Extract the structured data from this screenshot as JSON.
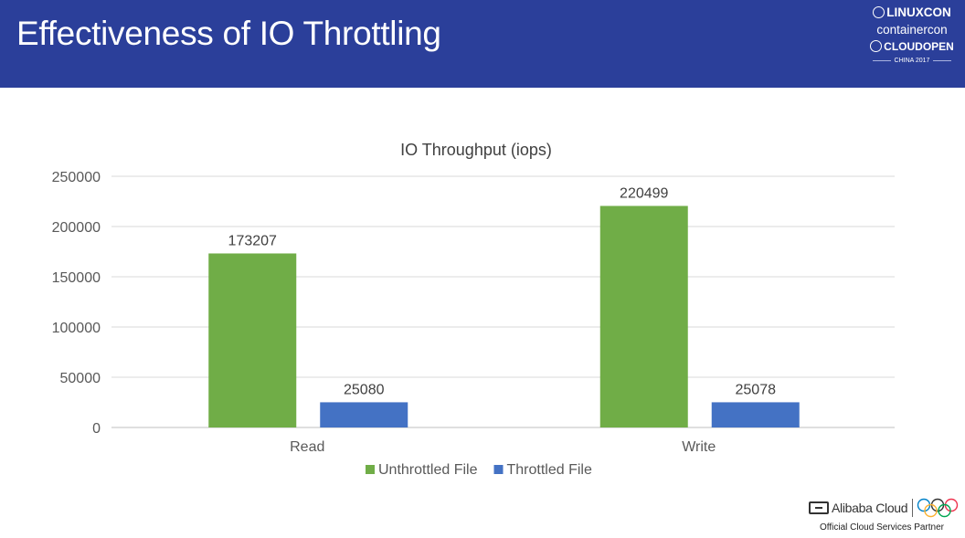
{
  "slide": {
    "title": "Effectiveness of IO Throttling"
  },
  "conference": {
    "line1": "LINUXCON",
    "line2": "containercon",
    "line3": "CLOUDOPEN",
    "line4": "CHINA 2017"
  },
  "footer": {
    "brand": "Alibaba Cloud",
    "partner": "Official Cloud Services Partner"
  },
  "chart_data": {
    "type": "bar",
    "title": "IO Throughput (iops)",
    "categories": [
      "Read",
      "Write"
    ],
    "series": [
      {
        "name": "Unthrottled File",
        "values": [
          173207,
          220499
        ],
        "color": "#70ad47"
      },
      {
        "name": "Throttled File",
        "values": [
          25080,
          25078
        ],
        "color": "#4472c4"
      }
    ],
    "ylim": [
      0,
      250000
    ],
    "yticks": [
      0,
      50000,
      100000,
      150000,
      200000,
      250000
    ],
    "xlabel": "",
    "ylabel": "",
    "grid": true,
    "legend": "bottom"
  }
}
